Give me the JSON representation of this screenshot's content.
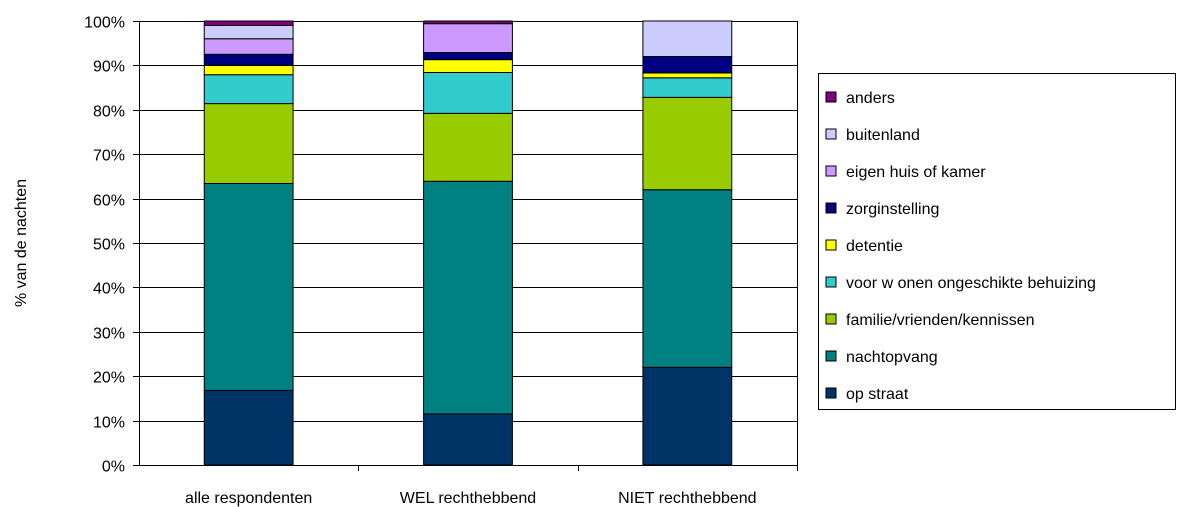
{
  "chart_data": {
    "type": "bar",
    "stacked": true,
    "percent_stacked": true,
    "title": "",
    "xlabel": "",
    "ylabel": "% van de nachten",
    "ylim": [
      0,
      100
    ],
    "y_ticks": [
      "0%",
      "10%",
      "20%",
      "30%",
      "40%",
      "50%",
      "60%",
      "70%",
      "80%",
      "90%",
      "100%"
    ],
    "grid": true,
    "legend_position": "right",
    "categories": [
      "alle respondenten",
      "WEL rechthebbend",
      "NIET rechthebbend"
    ],
    "series": [
      {
        "name": "op straat",
        "color": "#003366",
        "values": [
          16.8,
          11.5,
          22.0
        ]
      },
      {
        "name": "nachtopvang",
        "color": "#008080",
        "values": [
          46.6,
          52.4,
          40.0
        ]
      },
      {
        "name": "familie/vrienden/kennissen",
        "color": "#99CC00",
        "values": [
          18.0,
          15.3,
          20.8
        ]
      },
      {
        "name": "voor w onen ongeschikte behuizing",
        "color": "#33CCCC",
        "values": [
          6.5,
          9.2,
          4.4
        ]
      },
      {
        "name": "detentie",
        "color": "#FFFF00",
        "values": [
          2.1,
          2.9,
          1.1
        ]
      },
      {
        "name": "zorginstelling",
        "color": "#000080",
        "values": [
          2.5,
          1.6,
          3.7
        ]
      },
      {
        "name": "eigen huis of kamer",
        "color": "#CC99FF",
        "values": [
          3.5,
          6.5,
          0.0
        ]
      },
      {
        "name": "buitenland",
        "color": "#CCCCFF",
        "values": [
          3.0,
          0.0,
          8.0
        ]
      },
      {
        "name": "anders",
        "color": "#800080",
        "values": [
          1.0,
          0.6,
          0.0
        ]
      }
    ]
  }
}
